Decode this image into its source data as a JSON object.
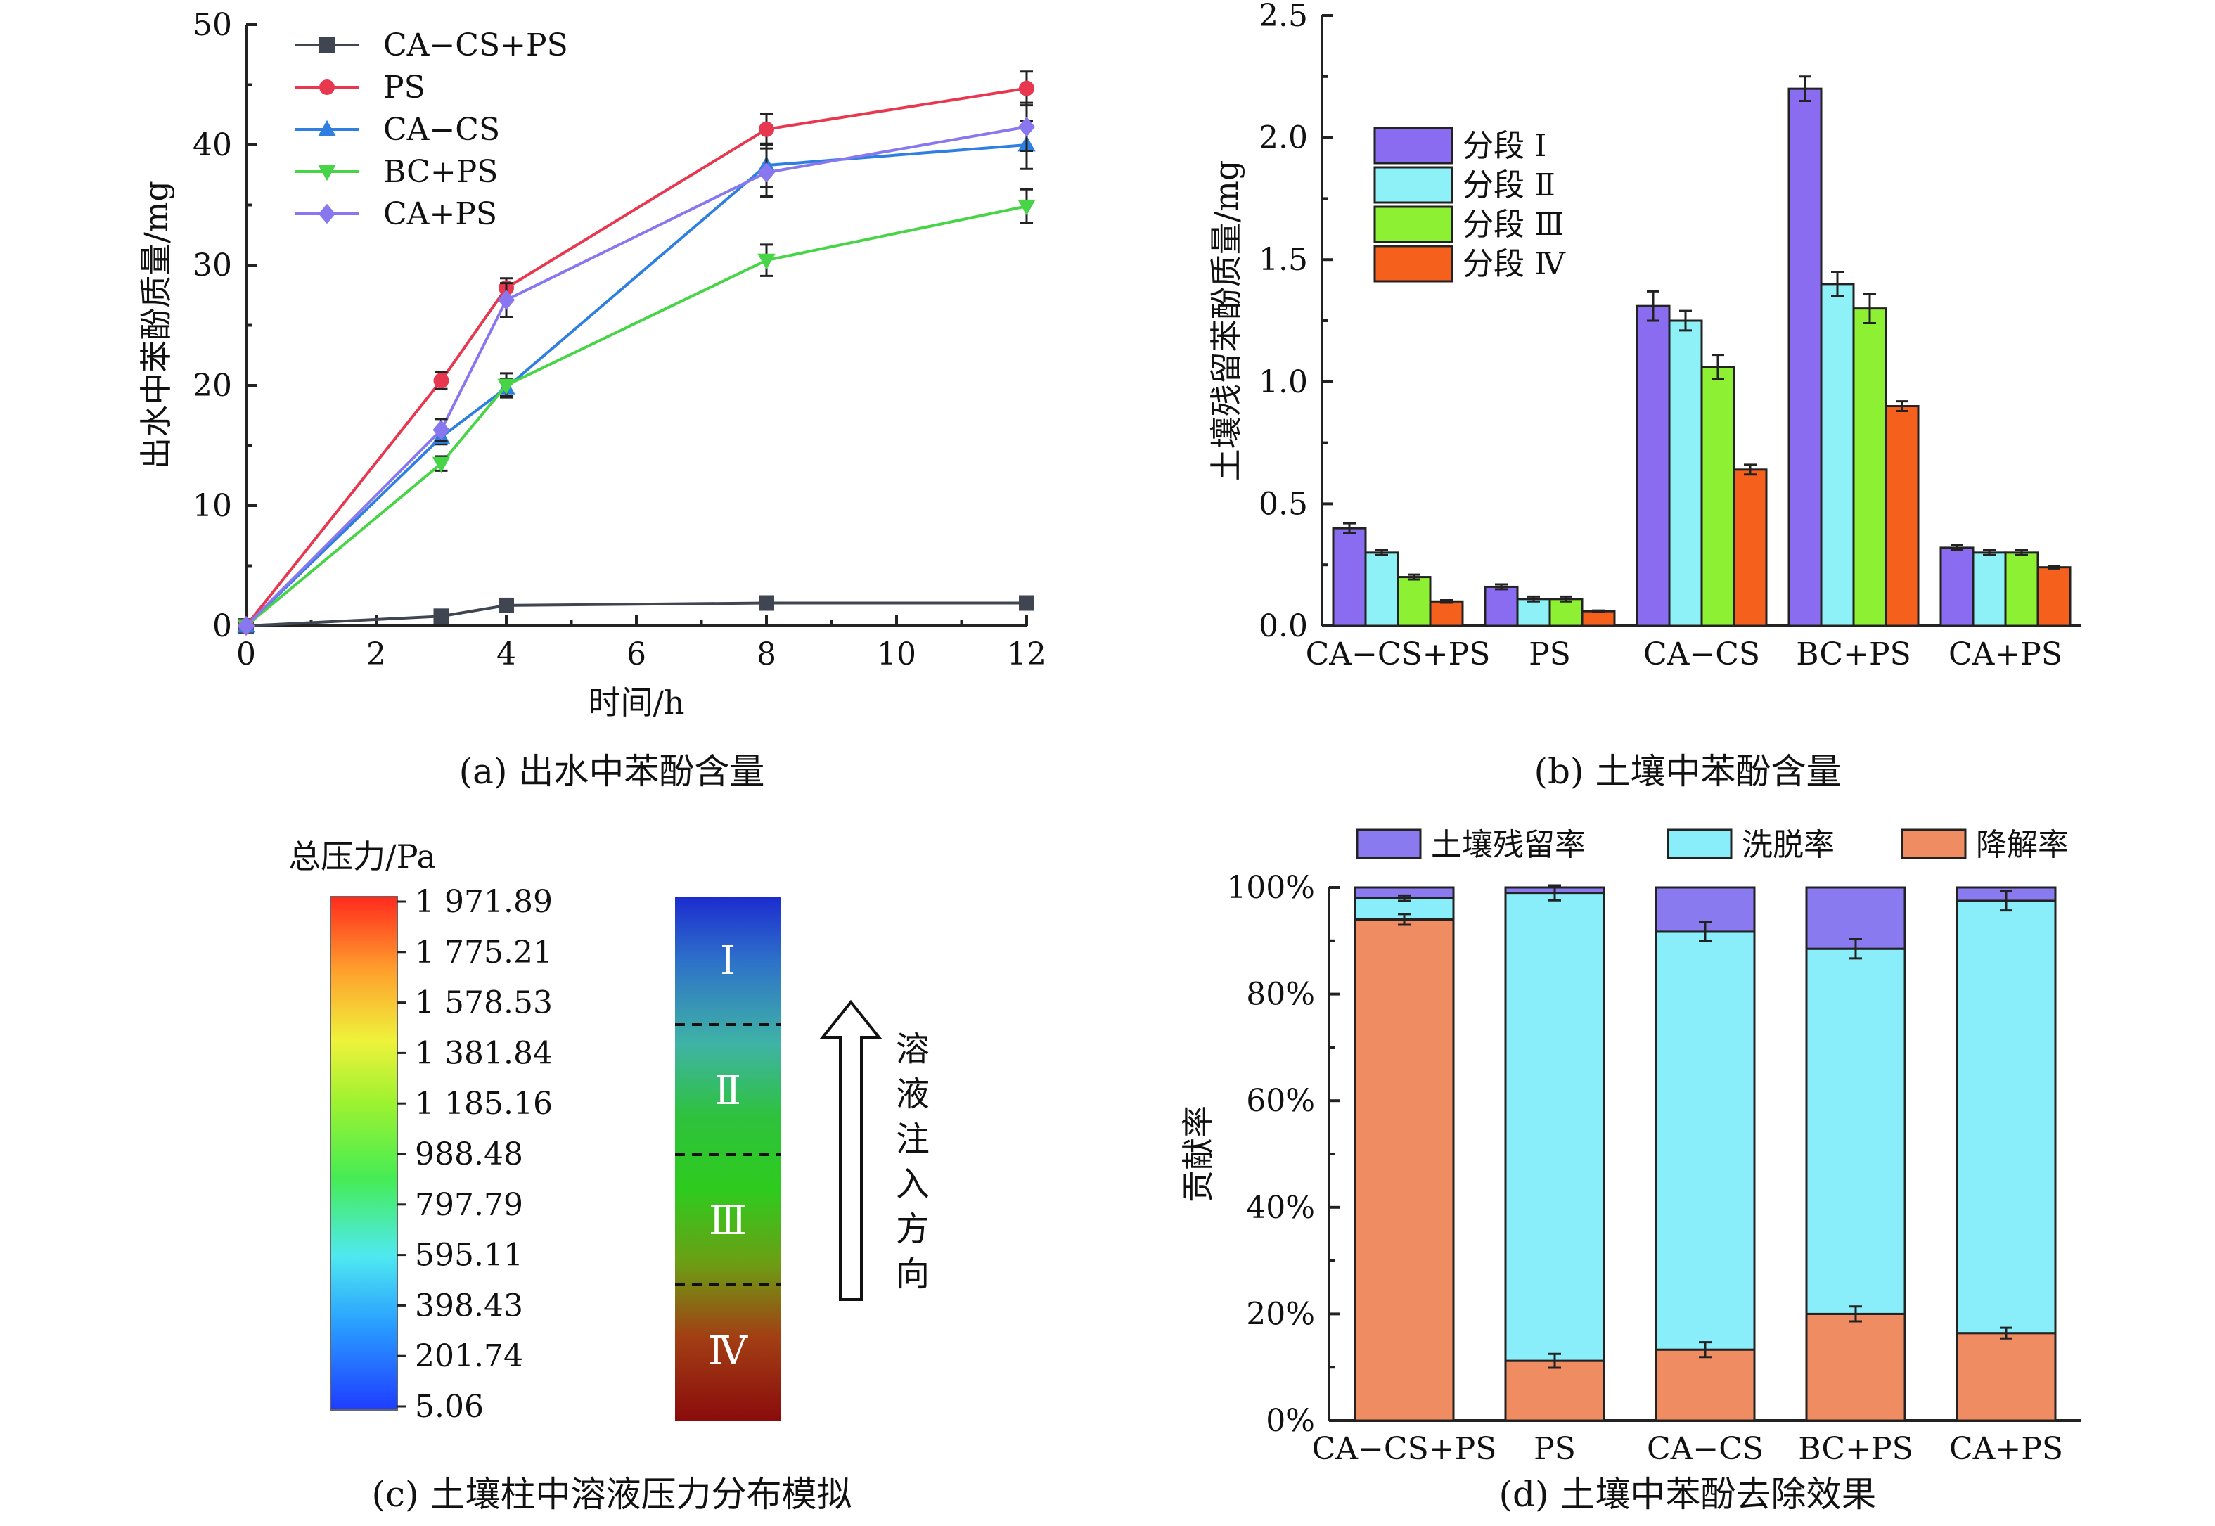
{
  "chart_data": [
    {
      "id": "a",
      "type": "line",
      "caption": "(a) 出水中苯酚含量",
      "xlabel": "时间/h",
      "ylabel": "出水中苯酚质量/mg",
      "xlim": [
        0,
        12
      ],
      "ylim": [
        0,
        50
      ],
      "xticks": [
        0,
        2,
        4,
        6,
        8,
        10,
        12
      ],
      "yticks": [
        0,
        10,
        20,
        30,
        40,
        50
      ],
      "legend_position": "top-left",
      "x": [
        0,
        3,
        4,
        8,
        12
      ],
      "series": [
        {
          "name": "CA−CS+PS",
          "color": "#3f4651",
          "marker": "square",
          "values": [
            0,
            0.8,
            1.7,
            1.9,
            1.9
          ],
          "errors": [
            0,
            0.3,
            0.3,
            0.3,
            0.3
          ]
        },
        {
          "name": "PS",
          "color": "#e8384f",
          "marker": "circle",
          "values": [
            0,
            20.4,
            28.1,
            41.3,
            44.7
          ],
          "errors": [
            0,
            0.7,
            0.8,
            1.3,
            1.4
          ]
        },
        {
          "name": "CA−CS",
          "color": "#2f7fe0",
          "marker": "triangle-up",
          "values": [
            0,
            15.7,
            19.8,
            38.3,
            40.0
          ],
          "errors": [
            0,
            0.6,
            0.7,
            1.8,
            2.0
          ]
        },
        {
          "name": "BC+PS",
          "color": "#47d447",
          "marker": "triangle-down",
          "values": [
            0,
            13.5,
            20.0,
            30.4,
            34.9
          ],
          "errors": [
            0,
            0.6,
            1.0,
            1.3,
            1.4
          ]
        },
        {
          "name": "CA+PS",
          "color": "#8877ee",
          "marker": "diamond",
          "values": [
            0,
            16.3,
            27.1,
            37.7,
            41.5
          ],
          "errors": [
            0,
            0.9,
            1.4,
            2.0,
            2.0
          ]
        }
      ]
    },
    {
      "id": "b",
      "type": "bar",
      "caption": "(b) 土壤中苯酚含量",
      "ylabel": "土壤残留苯酚质量/mg",
      "ylim": [
        0,
        2.5
      ],
      "yticks": [
        "0.0",
        "0.5",
        "1.0",
        "1.5",
        "2.0",
        "2.5"
      ],
      "legend_position": "top-left",
      "categories": [
        "CA−CS+PS",
        "PS",
        "CA−CS",
        "BC+PS",
        "CA+PS"
      ],
      "series": [
        {
          "name": "分段 Ⅰ",
          "color": "#8a6cf0",
          "values": [
            0.4,
            0.16,
            1.31,
            2.2,
            0.32
          ],
          "errors": [
            0.02,
            0.01,
            0.06,
            0.05,
            0.01
          ]
        },
        {
          "name": "分段 Ⅱ",
          "color": "#8ef1f7",
          "values": [
            0.3,
            0.11,
            1.25,
            1.4,
            0.3
          ],
          "errors": [
            0.01,
            0.01,
            0.04,
            0.05,
            0.01
          ]
        },
        {
          "name": "分段 Ⅲ",
          "color": "#8ef032",
          "values": [
            0.2,
            0.11,
            1.06,
            1.3,
            0.3
          ],
          "errors": [
            0.01,
            0.01,
            0.05,
            0.06,
            0.01
          ]
        },
        {
          "name": "分段 Ⅳ",
          "color": "#f5611d",
          "values": [
            0.1,
            0.06,
            0.64,
            0.9,
            0.24
          ],
          "errors": [
            0.005,
            0.003,
            0.02,
            0.02,
            0.005
          ]
        }
      ]
    },
    {
      "id": "c",
      "type": "heatmap",
      "caption": "(c) 土壤柱中溶液压力分布模拟",
      "colorbar_title": "总压力/Pa",
      "colorbar_ticks": [
        "1 971.89",
        "1 775.21",
        "1 578.53",
        "1 381.84",
        "1 185.16",
        "988.48",
        "797.79",
        "595.11",
        "398.43",
        "201.74",
        "5.06"
      ],
      "segments": [
        "Ⅰ",
        "Ⅱ",
        "Ⅲ",
        "Ⅳ"
      ],
      "direction_chars": [
        "溶",
        "液",
        "注",
        "入",
        "方",
        "向"
      ]
    },
    {
      "id": "d",
      "type": "bar",
      "stacked": true,
      "caption": "(d) 土壤中苯酚去除效果",
      "ylabel": "贡献率",
      "ylim": [
        0,
        100
      ],
      "yticks": [
        "0%",
        "20%",
        "40%",
        "60%",
        "80%",
        "100%"
      ],
      "legend_position": "top",
      "categories": [
        "CA−CS+PS",
        "PS",
        "CA−CS",
        "BC+PS",
        "CA+PS"
      ],
      "series": [
        {
          "name": "降解率",
          "color": "#f08c62",
          "values": [
            94.0,
            11.2,
            13.3,
            20.0,
            16.4
          ],
          "errors": [
            1.0,
            1.3,
            1.4,
            1.4,
            1.0
          ]
        },
        {
          "name": "洗脱率",
          "color": "#8aeefa",
          "values": [
            4.0,
            87.8,
            78.4,
            68.5,
            81.1
          ],
          "errors": [
            0.5,
            1.4,
            1.8,
            1.8,
            1.8
          ]
        },
        {
          "name": "土壤残留率",
          "color": "#8a7af0",
          "values": [
            2.0,
            1.0,
            8.3,
            11.5,
            2.5
          ],
          "errors": [
            0,
            0,
            0,
            0,
            0
          ]
        }
      ]
    }
  ]
}
